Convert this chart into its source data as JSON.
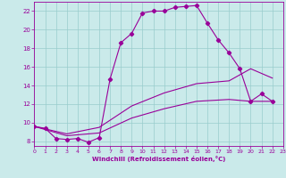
{
  "xlabel": "Windchill (Refroidissement éolien,°C)",
  "bg_color": "#caeaea",
  "line_color": "#990099",
  "grid_color": "#99cccc",
  "xlim": [
    0,
    23
  ],
  "ylim": [
    7.5,
    23
  ],
  "yticks": [
    8,
    10,
    12,
    14,
    16,
    18,
    20,
    22
  ],
  "xticks": [
    0,
    1,
    2,
    3,
    4,
    5,
    6,
    7,
    8,
    9,
    10,
    11,
    12,
    13,
    14,
    15,
    16,
    17,
    18,
    19,
    20,
    21,
    22,
    23
  ],
  "line1_x": [
    0,
    1,
    2,
    3,
    4,
    5,
    6,
    7,
    8,
    9,
    10,
    11,
    12,
    13,
    14,
    15,
    16,
    17,
    18,
    19,
    20,
    21,
    22
  ],
  "line1_y": [
    9.6,
    9.4,
    8.3,
    8.2,
    8.3,
    7.9,
    8.4,
    14.7,
    18.6,
    19.6,
    21.8,
    22.0,
    22.0,
    22.4,
    22.5,
    22.6,
    20.7,
    18.9,
    17.5,
    15.8,
    12.3,
    13.1,
    12.3
  ],
  "line2_x": [
    0,
    22
  ],
  "line2_y": [
    9.6,
    14.8
  ],
  "line3_x": [
    0,
    22
  ],
  "line3_y": [
    9.6,
    12.3
  ],
  "curve2_x": [
    0,
    3,
    6,
    9,
    12,
    15,
    18,
    20,
    22
  ],
  "curve2_y": [
    9.6,
    8.8,
    9.5,
    11.8,
    13.2,
    14.2,
    14.5,
    15.8,
    14.8
  ],
  "curve3_x": [
    0,
    3,
    6,
    9,
    12,
    15,
    18,
    20,
    22
  ],
  "curve3_y": [
    9.6,
    8.6,
    8.9,
    10.5,
    11.5,
    12.3,
    12.5,
    12.3,
    12.3
  ]
}
